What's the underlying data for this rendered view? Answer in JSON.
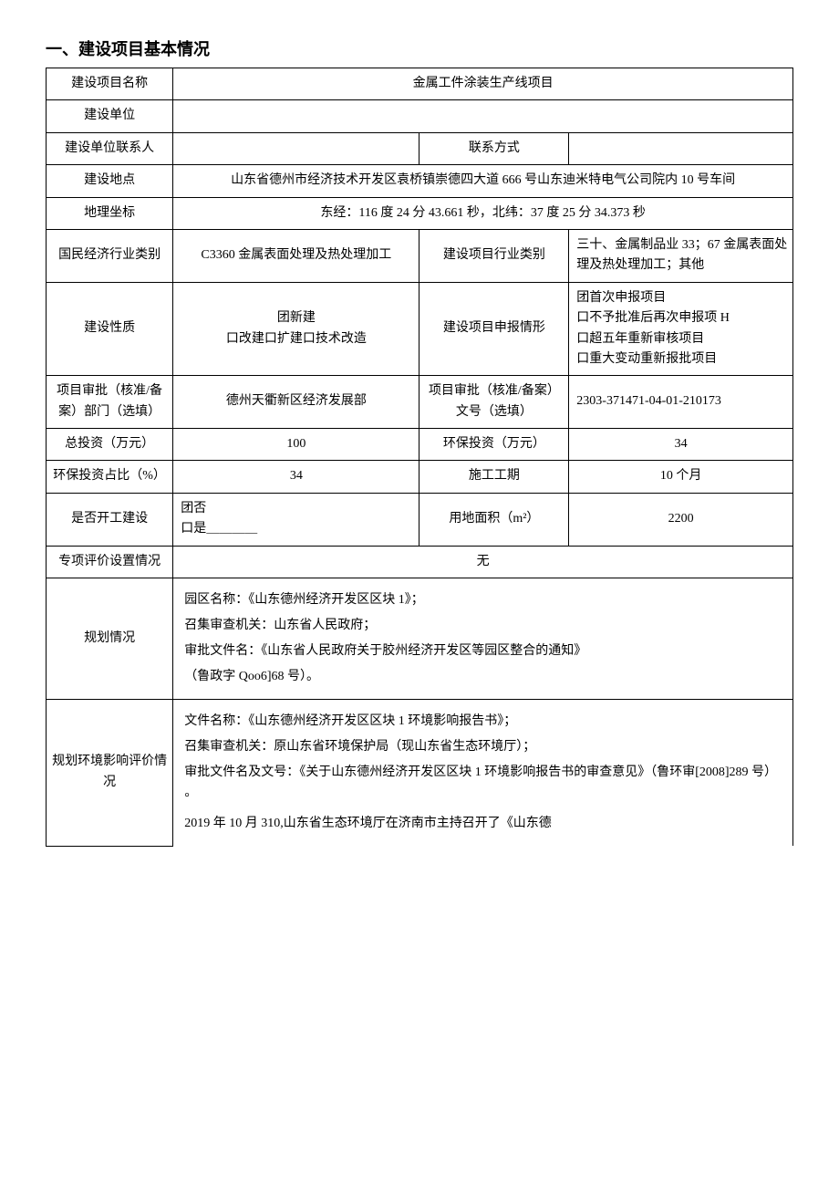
{
  "heading": "一、建设项目基本情况",
  "rows": {
    "project_name": {
      "label": "建设项目名称",
      "value": "金属工件涂装生产线项目"
    },
    "builder": {
      "label": "建设单位",
      "value": ""
    },
    "contact_person": {
      "label": "建设单位联系人",
      "value": ""
    },
    "contact_method": {
      "label": "联系方式",
      "value": ""
    },
    "location": {
      "label": "建设地点",
      "value": "山东省德州市经济技术开发区袁桥镇崇德四大道 666 号山东迪米特电气公司院内 10 号车间"
    },
    "geo": {
      "label": "地理坐标",
      "value": "东经：116 度 24 分 43.661 秒，北纬：37 度 25 分 34.373 秒"
    },
    "econ_category": {
      "label": "国民经济行业类别",
      "value": "C3360 金属表面处理及热处理加工"
    },
    "project_industry": {
      "label": "建设项目行业类别",
      "value": "三十、金属制品业 33；67 金属表面处理及热处理加工；其他"
    },
    "nature": {
      "label": "建设性质",
      "value": "团新建\n口改建口扩建口技术改造"
    },
    "apply_form": {
      "label": "建设项目申报情形",
      "value": "团首次申报项目\n口不予批准后再次申报项 H\n口超五年重新审核项目\n口重大变动重新报批项目"
    },
    "approve_dept": {
      "label": "项目审批（核准/备案）部门（选填）",
      "value": "德州天衢新区经济发展部"
    },
    "approve_no": {
      "label": "项目审批（核准/备案）文号（选填）",
      "value": "2303-371471-04-01-210173"
    },
    "total_invest": {
      "label": "总投资（万元）",
      "value": "100"
    },
    "env_invest": {
      "label": "环保投资（万元）",
      "value": "34"
    },
    "env_ratio": {
      "label": "环保投资占比（%）",
      "value": "34"
    },
    "duration": {
      "label": "施工工期",
      "value": "10 个月"
    },
    "started": {
      "label": "是否开工建设",
      "value": "团否\n口是＿＿＿＿"
    },
    "land_area": {
      "label": "用地面积（m²）",
      "value": "2200"
    },
    "special_eval": {
      "label": "专项评价设置情况",
      "value": "无"
    },
    "planning": {
      "label": "规划情况",
      "value": "园区名称：《山东德州经济开发区区块 1》；\n召集审查机关：山东省人民政府；\n审批文件名：《山东省人民政府关于胶州经济开发区等园区整合的通知》\n（鲁政字 Qoo6]68 号）。"
    },
    "plan_env": {
      "label": "规划环境影响评价情况",
      "value": "文件名称：《山东德州经济开发区区块 1 环境影响报告书》；\n召集审查机关：原山东省环境保护局（现山东省生态环境厅）；\n审批文件名及文号：《关于山东德州经济开发区区块 1 环境影响报告书的审查意见》（鲁环审[2008]289 号）°\n2019 年 10 月 310,山东省生态环境厅在济南市主持召开了《山东德"
    }
  }
}
